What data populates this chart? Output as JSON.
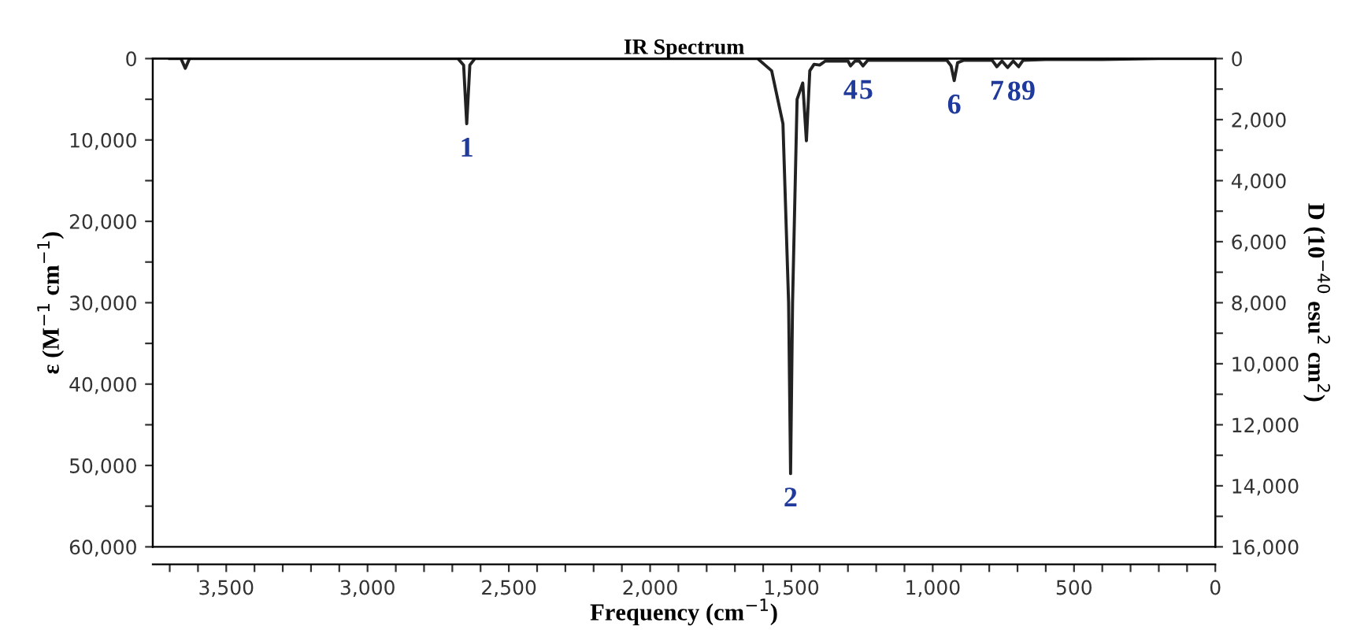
{
  "chart_data": {
    "type": "line",
    "title": "IR Spectrum",
    "xlabel": "Frequency (cm$^{−1}$)",
    "ylabel": "ε (M$^{−1}$ cm$^{−1}$)",
    "y2label": "D (10$^{−40}$ esu$^{2}$ cm$^{2}$)",
    "series": [
      {
        "color": "#222222",
        "x": [
          3700,
          3660,
          3645,
          3630,
          2680,
          2660,
          2649,
          2638,
          2620,
          1620,
          1570,
          1530,
          1510,
          1503,
          1496,
          1480,
          1460,
          1447,
          1435,
          1420,
          1400,
          1380,
          1300,
          1291,
          1275,
          1260,
          1247,
          1230,
          950,
          935,
          924,
          912,
          890,
          790,
          773,
          755,
          735,
          715,
          696,
          680,
          600,
          400,
          200,
          0
        ],
        "values": [
          0,
          0,
          1200,
          0,
          0,
          800,
          8000,
          800,
          0,
          0,
          1500,
          8000,
          30000,
          51000,
          30000,
          5000,
          3000,
          10100,
          1500,
          700,
          800,
          300,
          300,
          900,
          300,
          300,
          900,
          200,
          200,
          900,
          2700,
          500,
          200,
          200,
          1000,
          300,
          1100,
          300,
          1000,
          200,
          100,
          100,
          0,
          0
        ]
      }
    ],
    "annotations": [
      {
        "text": "1",
        "x": 2649,
        "y": 8000
      },
      {
        "text": "2",
        "x": 1503,
        "y": 51000
      },
      {
        "text": "4",
        "x": 1291,
        "y": 900
      },
      {
        "text": "5",
        "x": 1247,
        "y": 900
      },
      {
        "text": "6",
        "x": 924,
        "y": 2700
      },
      {
        "text": "7",
        "x": 773,
        "y": 1000
      },
      {
        "text": "8",
        "x": 735,
        "y": 1100
      },
      {
        "text": "9",
        "x": 696,
        "y": 1000
      }
    ],
    "xlim": [
      3760,
      0
    ],
    "xticks": [
      {
        "value": 3700,
        "label": null
      },
      {
        "value": 3600,
        "label": null
      },
      {
        "value": 3500,
        "label": "3,500"
      },
      {
        "value": 3400,
        "label": null
      },
      {
        "value": 3300,
        "label": null
      },
      {
        "value": 3200,
        "label": null
      },
      {
        "value": 3100,
        "label": null
      },
      {
        "value": 3000,
        "label": "3,000"
      },
      {
        "value": 2900,
        "label": null
      },
      {
        "value": 2800,
        "label": null
      },
      {
        "value": 2700,
        "label": null
      },
      {
        "value": 2600,
        "label": null
      },
      {
        "value": 2500,
        "label": "2,500"
      },
      {
        "value": 2400,
        "label": null
      },
      {
        "value": 2300,
        "label": null
      },
      {
        "value": 2200,
        "label": null
      },
      {
        "value": 2100,
        "label": null
      },
      {
        "value": 2000,
        "label": "2,000"
      },
      {
        "value": 1900,
        "label": null
      },
      {
        "value": 1800,
        "label": null
      },
      {
        "value": 1700,
        "label": null
      },
      {
        "value": 1600,
        "label": null
      },
      {
        "value": 1500,
        "label": "1,500"
      },
      {
        "value": 1400,
        "label": null
      },
      {
        "value": 1300,
        "label": null
      },
      {
        "value": 1200,
        "label": null
      },
      {
        "value": 1100,
        "label": null
      },
      {
        "value": 1000,
        "label": "1,000"
      },
      {
        "value": 900,
        "label": null
      },
      {
        "value": 800,
        "label": null
      },
      {
        "value": 700,
        "label": null
      },
      {
        "value": 600,
        "label": null
      },
      500,
      {
        "value": 400,
        "label": null
      },
      {
        "value": 300,
        "label": null
      },
      {
        "value": 200,
        "label": null
      },
      {
        "value": 100,
        "label": null
      },
      0
    ],
    "ylim": [
      60000,
      0
    ],
    "yticks": [
      0,
      {
        "value": 5000,
        "label": null
      },
      {
        "value": 10000,
        "label": "10,000"
      },
      {
        "value": 15000,
        "label": null
      },
      {
        "value": 20000,
        "label": "20,000"
      },
      {
        "value": 25000,
        "label": null
      },
      {
        "value": 30000,
        "label": "30,000"
      },
      {
        "value": 35000,
        "label": null
      },
      {
        "value": 40000,
        "label": "40,000"
      },
      {
        "value": 45000,
        "label": null
      },
      {
        "value": 50000,
        "label": "50,000"
      },
      {
        "value": 55000,
        "label": null
      },
      {
        "value": 60000,
        "label": "60,000"
      }
    ],
    "y2lim": [
      16000,
      0
    ],
    "y2ticks": [
      0,
      {
        "value": 1000,
        "label": null
      },
      {
        "value": 2000,
        "label": "2,000"
      },
      {
        "value": 3000,
        "label": null
      },
      {
        "value": 4000,
        "label": "4,000"
      },
      {
        "value": 5000,
        "label": null
      },
      {
        "value": 6000,
        "label": "6,000"
      },
      {
        "value": 7000,
        "label": null
      },
      {
        "value": 8000,
        "label": "8,000"
      },
      {
        "value": 9000,
        "label": null
      },
      {
        "value": 10000,
        "label": "10,000"
      },
      {
        "value": 11000,
        "label": null
      },
      {
        "value": 12000,
        "label": "12,000"
      },
      {
        "value": 13000,
        "label": null
      },
      {
        "value": 14000,
        "label": "14,000"
      },
      {
        "value": 15000,
        "label": null
      },
      {
        "value": 16000,
        "label": "16,000"
      }
    ],
    "grid": false,
    "legend": false,
    "marker": "none",
    "line_style": "solid"
  }
}
